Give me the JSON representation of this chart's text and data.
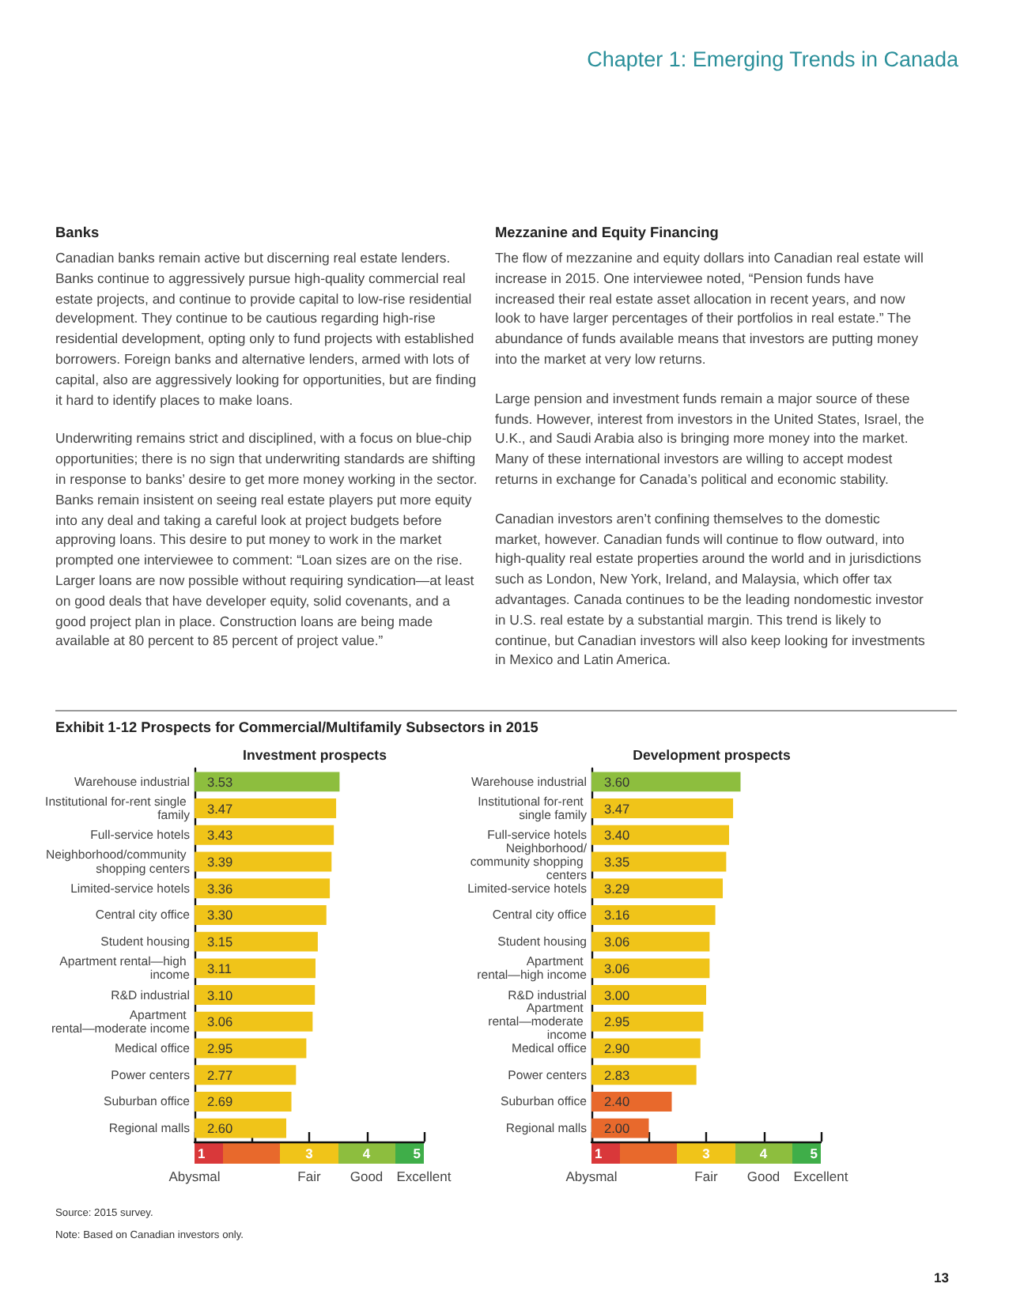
{
  "chart_data": [
    {
      "type": "other",
      "title": "Chapter 1: Emerging Trends in Canada",
      "annotations": [
        "Banks",
        "Canadian banks remain active but discerning real estate lenders. Banks continue to aggressively pursue high-quality commercial real estate projects, and continue to provide capital to low-rise residential development. They continue to be cautious regarding high-rise residential development, opting only to fund projects with established borrowers. Foreign banks and alternative lenders, armed with lots of capital, also are aggressively looking for opportunities, but are finding it hard to identify places to make loans.",
        "Underwriting remains strict and disciplined, with a focus on blue-chip opportunities; there is no sign that underwriting standards are shifting in response to banks’ desire to get more money working in the sector. Banks remain insistent on seeing real estate players put more equity into any deal and taking a careful look at project budgets before approving loans. This desire to put money to work in the market prompted one interviewee to comment: “Loan sizes are on the rise. Larger loans are now possible without requiring syndication—at least on good deals that have developer equity, solid covenants, and a good project plan in place. Construction loans are being made available at 80 percent to 85 percent of project value.”",
        "Mezzanine and Equity Financing",
        "The flow of mezzanine and equity dollars into Canadian real estate will increase in 2015. One interviewee noted, “Pension funds have increased their real estate asset allocation in recent years, and now look to have larger percentages of their portfolios in real estate.” The abundance of funds available means that investors are putting money into the market at very low returns.",
        "Large pension and investment funds remain a major source of these funds. However, interest from investors in the United States, Israel, the U.K., and Saudi Arabia also is bringing more money into the market. Many of these international investors are willing to accept modest returns in exchange for Canada’s political and economic stability.",
        "Canadian investors aren’t confining themselves to the domestic market, however. Canadian funds will continue to flow outward, into high-quality real estate properties around the world and in jurisdictions such as London, New York, Ireland, and Malaysia, which offer tax advantages. Canada continues to be the leading nondomestic investor in U.S. real estate by a substantial margin. This trend is likely to continue, but Canadian investors will also keep looking for investments in Mexico and Latin America.",
        "Exhibit 1-12 Prospects for Commercial/Multifamily Subsectors in 2015",
        "Source: 2015 survey.",
        "Note: Based on Canadian investors only.",
        "13"
      ]
    },
    {
      "type": "bar",
      "orientation": "horizontal",
      "title": "Investment prospects",
      "categories": [
        "Warehouse industrial",
        "Institutional for-rent single family",
        "Full-service hotels",
        "Neighborhood/community shopping centers",
        "Limited-service hotels",
        "Central city office",
        "Student housing",
        "Apartment rental—high income",
        "R&D industrial",
        "Apartment rental—moderate income",
        "Medical office",
        "Power centers",
        "Suburban office",
        "Regional malls"
      ],
      "values": [
        3.53,
        3.47,
        3.43,
        3.39,
        3.36,
        3.3,
        3.15,
        3.11,
        3.1,
        3.06,
        2.95,
        2.77,
        2.69,
        2.6
      ],
      "value_labels": [
        "3.53",
        "3.47",
        "3.43",
        "3.39",
        "3.36",
        "3.30",
        "3.15",
        "3.11",
        "3.10",
        "3.06",
        "2.95",
        "2.77",
        "2.69",
        "2.60"
      ],
      "colors": [
        "#8dbe3e",
        "#f0c419",
        "#f0c419",
        "#f0c419",
        "#f0c419",
        "#f0c419",
        "#f0c419",
        "#f0c419",
        "#f0c419",
        "#f0c419",
        "#f0c419",
        "#f0c419",
        "#f0c419",
        "#f0c419"
      ],
      "xlim": [
        1,
        5
      ],
      "xticks": [
        1,
        {
          "value": 2,
          "label": null
        },
        3,
        4,
        5
      ],
      "annotations": [
        "Abysmal",
        "Fair",
        "Good",
        "Excellent"
      ]
    },
    {
      "type": "bar",
      "orientation": "horizontal",
      "title": "Development prospects",
      "categories": [
        "Warehouse industrial",
        "Institutional for-rent single family",
        "Full-service hotels",
        "Neighborhood/community shopping centers",
        "Limited-service hotels",
        "Central city office",
        "Student housing",
        "Apartment rental—high income",
        "R&D industrial",
        "Apartment rental—moderate income",
        "Medical office",
        "Power centers",
        "Suburban office",
        "Regional malls"
      ],
      "values": [
        3.6,
        3.47,
        3.4,
        3.35,
        3.29,
        3.16,
        3.06,
        3.06,
        3.0,
        2.95,
        2.9,
        2.83,
        2.4,
        2.0
      ],
      "value_labels": [
        "3.60",
        "3.47",
        "3.40",
        "3.35",
        "3.29",
        "3.16",
        "3.06",
        "3.06",
        "3.00",
        "2.95",
        "2.90",
        "2.83",
        "2.40",
        "2.00"
      ],
      "colors": [
        "#8dbe3e",
        "#f0c419",
        "#f0c419",
        "#f0c419",
        "#f0c419",
        "#f0c419",
        "#f0c419",
        "#f0c419",
        "#f0c419",
        "#f0c419",
        "#f0c419",
        "#f0c419",
        "#e8692c",
        "#e8692c"
      ],
      "xlim": [
        1,
        5
      ],
      "xticks": [
        1,
        {
          "value": 2,
          "label": null
        },
        3,
        4,
        5
      ],
      "annotations": [
        "Abysmal",
        "Fair",
        "Good",
        "Excellent"
      ]
    }
  ]
}
